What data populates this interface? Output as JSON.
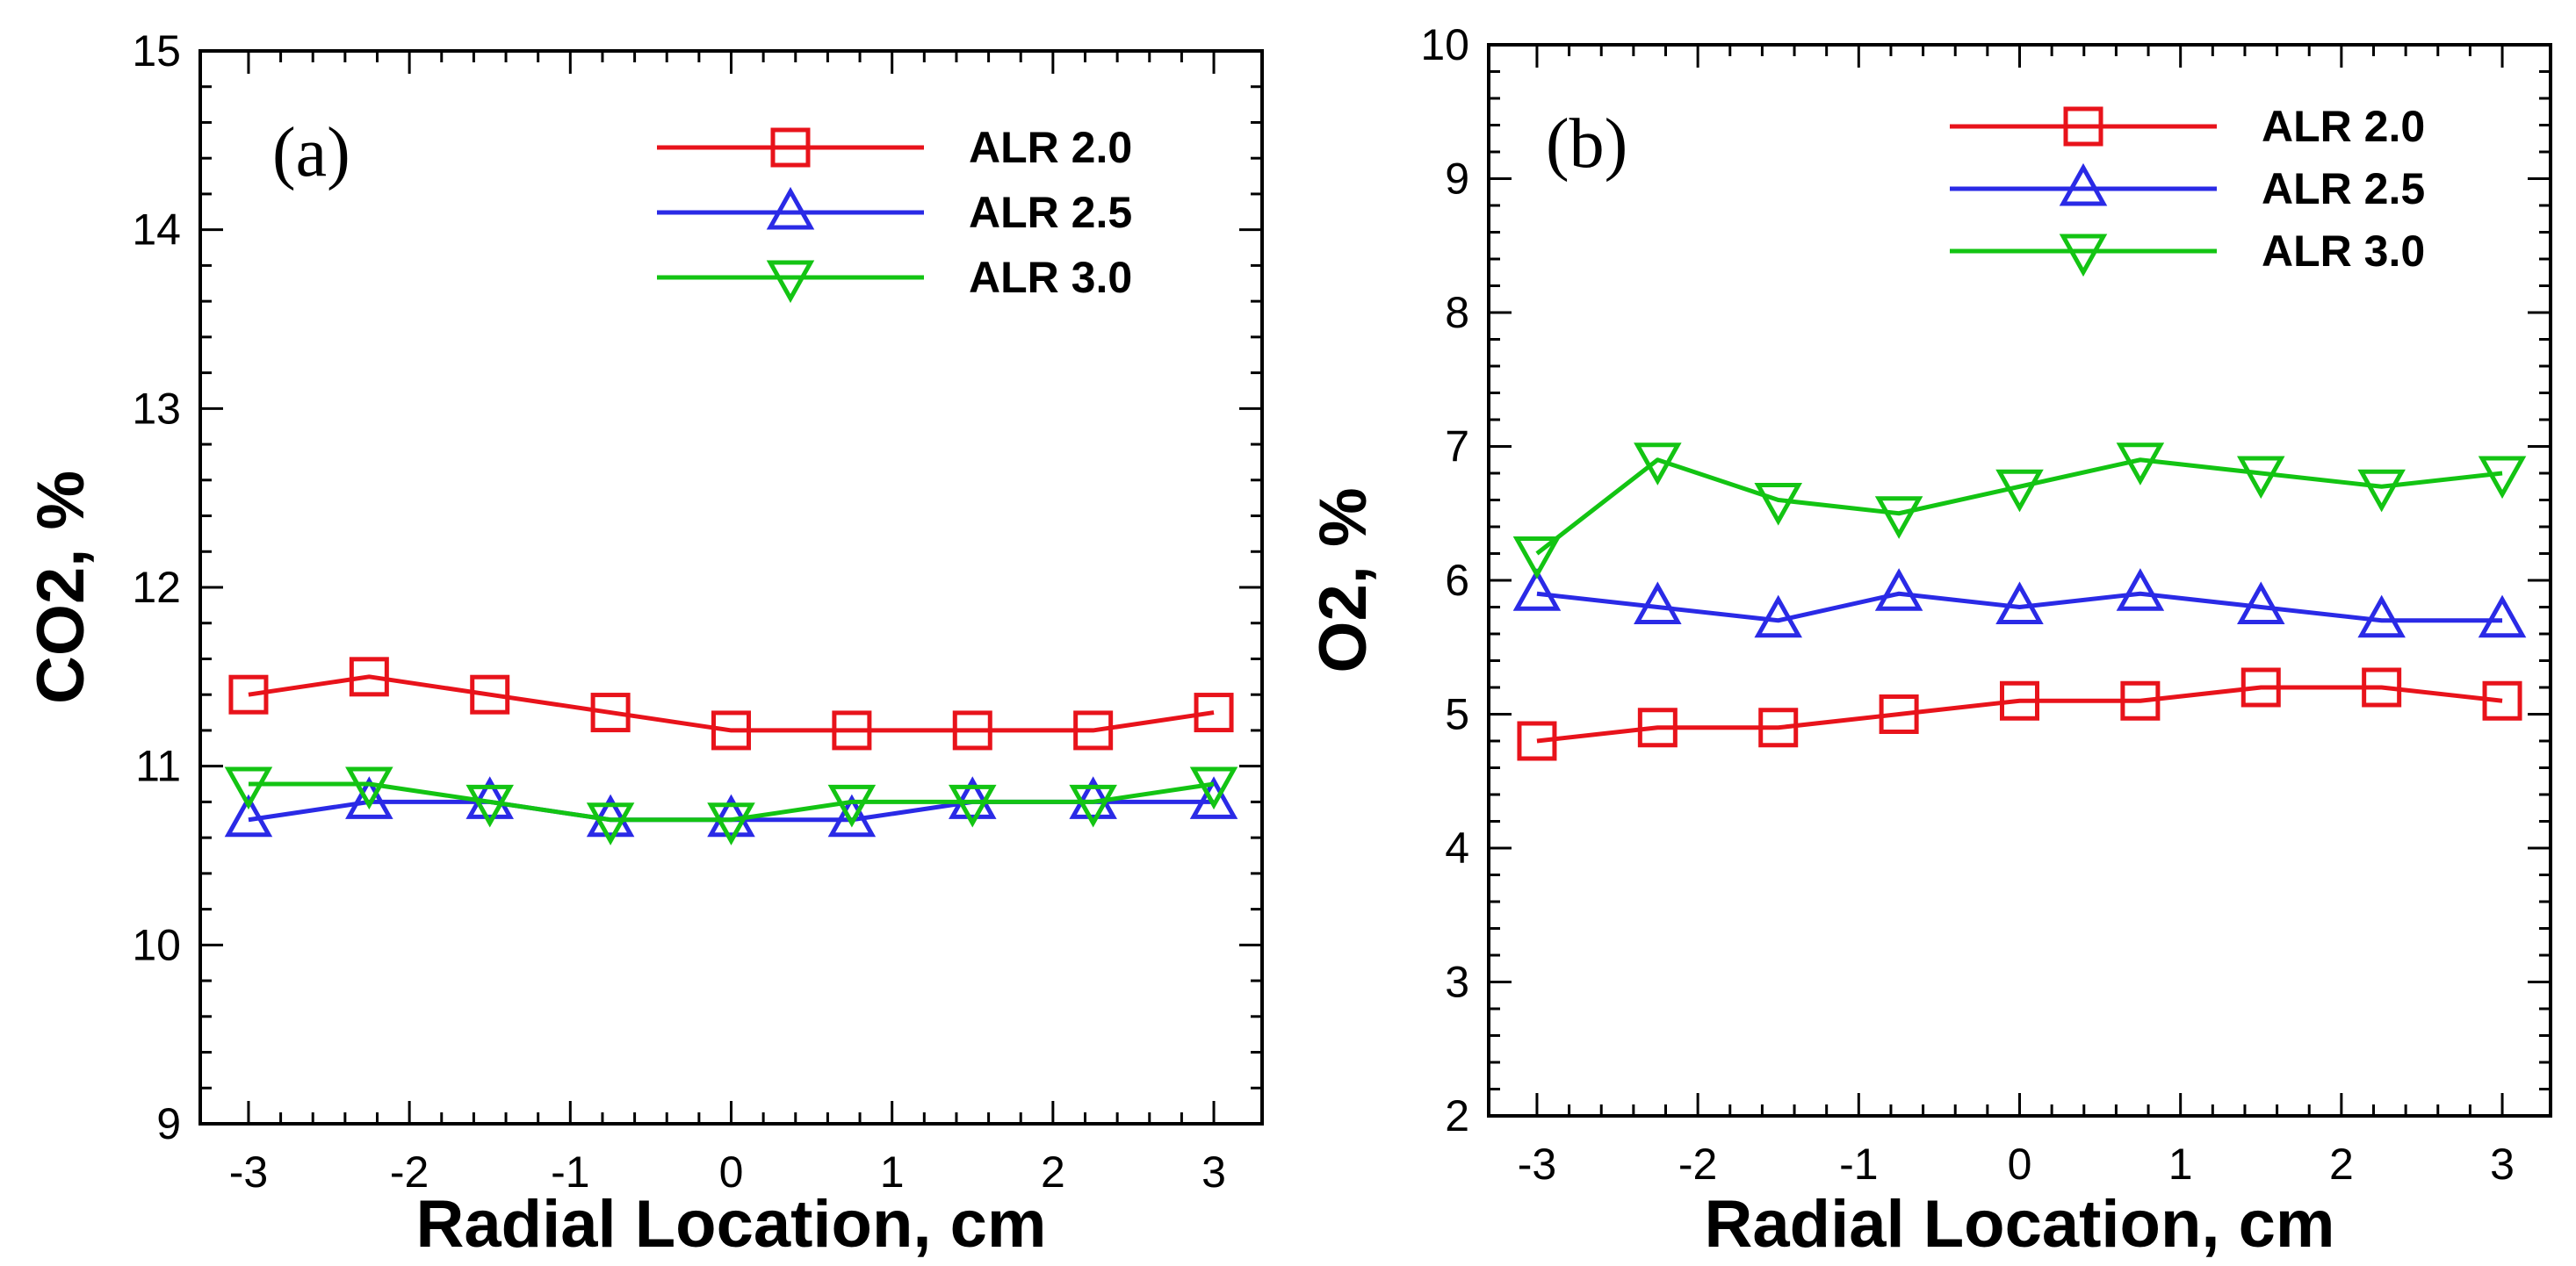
{
  "chart_data": [
    {
      "type": "line",
      "panel_label": "(a)",
      "xlabel": "Radial Location, cm",
      "ylabel": "CO2, %",
      "xlim": [
        -3.3,
        3.3
      ],
      "ylim": [
        9,
        15
      ],
      "xticks": [
        "-3",
        "-2",
        "-1",
        "0",
        "1",
        "2",
        "3"
      ],
      "yticks": [
        "9",
        "10",
        "11",
        "12",
        "13",
        "14",
        "15"
      ],
      "x": [
        -3.0,
        -2.25,
        -1.5,
        -0.75,
        0.0,
        0.75,
        1.5,
        2.25,
        3.0
      ],
      "legend_position": "top-right",
      "series": [
        {
          "name": "ALR 2.0",
          "color": "#e8131b",
          "marker": "square",
          "values": [
            11.4,
            11.5,
            11.4,
            11.3,
            11.2,
            11.2,
            11.2,
            11.2,
            11.3
          ]
        },
        {
          "name": "ALR 2.5",
          "color": "#2a2ae6",
          "marker": "triangle-up",
          "values": [
            10.7,
            10.8,
            10.8,
            10.7,
            10.7,
            10.7,
            10.8,
            10.8,
            10.8
          ]
        },
        {
          "name": "ALR 3.0",
          "color": "#13c413",
          "marker": "triangle-down",
          "values": [
            10.9,
            10.9,
            10.8,
            10.7,
            10.7,
            10.8,
            10.8,
            10.8,
            10.9
          ]
        }
      ]
    },
    {
      "type": "line",
      "panel_label": "(b)",
      "xlabel": "Radial Location, cm",
      "ylabel": "O2, %",
      "xlim": [
        -3.3,
        3.3
      ],
      "ylim": [
        2,
        10
      ],
      "xticks": [
        "-3",
        "-2",
        "-1",
        "0",
        "1",
        "2",
        "3"
      ],
      "yticks": [
        "2",
        "3",
        "4",
        "5",
        "6",
        "7",
        "8",
        "9",
        "10"
      ],
      "x": [
        -3.0,
        -2.25,
        -1.5,
        -0.75,
        0.0,
        0.75,
        1.5,
        2.25,
        3.0
      ],
      "legend_position": "top-right",
      "series": [
        {
          "name": "ALR 2.0",
          "color": "#e8131b",
          "marker": "square",
          "values": [
            4.8,
            4.9,
            4.9,
            5.0,
            5.1,
            5.1,
            5.2,
            5.2,
            5.1
          ]
        },
        {
          "name": "ALR 2.5",
          "color": "#2a2ae6",
          "marker": "triangle-up",
          "values": [
            5.9,
            5.8,
            5.7,
            5.9,
            5.8,
            5.9,
            5.8,
            5.7,
            5.7
          ]
        },
        {
          "name": "ALR 3.0",
          "color": "#13c413",
          "marker": "triangle-down",
          "values": [
            6.2,
            6.9,
            6.6,
            6.5,
            6.7,
            6.9,
            6.8,
            6.7,
            6.8
          ]
        }
      ]
    }
  ]
}
